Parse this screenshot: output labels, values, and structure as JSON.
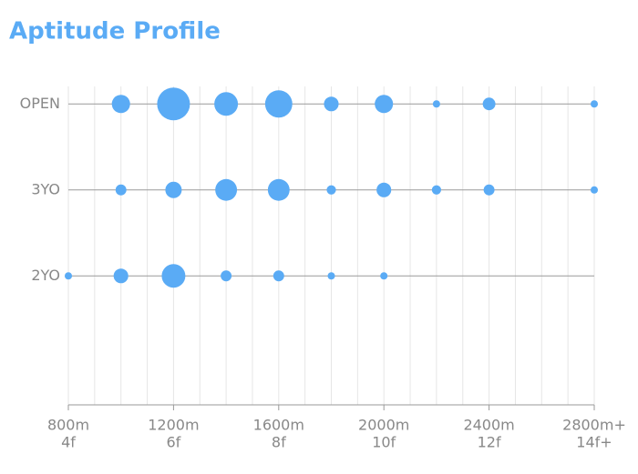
{
  "chart_data": {
    "type": "bubble",
    "title": "Aptitude Profile",
    "x": [
      800,
      1000,
      1200,
      1400,
      1600,
      1800,
      2000,
      2200,
      2400,
      2600,
      2800
    ],
    "xlim": [
      800,
      2800
    ],
    "xticks": [
      {
        "value": 800,
        "label": [
          "800m",
          "4f"
        ]
      },
      {
        "value": 1200,
        "label": [
          "1200m",
          "6f"
        ]
      },
      {
        "value": 1600,
        "label": [
          "1600m",
          "8f"
        ]
      },
      {
        "value": 2000,
        "label": [
          "2000m",
          "10f"
        ]
      },
      {
        "value": 2400,
        "label": [
          "2400m",
          "12f"
        ]
      },
      {
        "value": 2800,
        "label": [
          "2800m+",
          "14f+"
        ]
      }
    ],
    "xgrid": [
      800,
      900,
      1000,
      1100,
      1200,
      1300,
      1400,
      1500,
      1600,
      1700,
      1800,
      1900,
      2000,
      2100,
      2200,
      2300,
      2400,
      2500,
      2600,
      2700,
      2800
    ],
    "color": "#5aabf5",
    "series": [
      {
        "name": "OPEN",
        "values": [
          null,
          31,
          100,
          52,
          69,
          20,
          31,
          5,
          15,
          null,
          5
        ]
      },
      {
        "name": "3YO",
        "values": [
          null,
          11,
          25,
          44,
          44,
          8,
          20,
          8,
          11,
          null,
          5
        ]
      },
      {
        "name": "2YO",
        "values": [
          5,
          20,
          52,
          11,
          11,
          5,
          5,
          null,
          null,
          null,
          null
        ]
      }
    ]
  }
}
